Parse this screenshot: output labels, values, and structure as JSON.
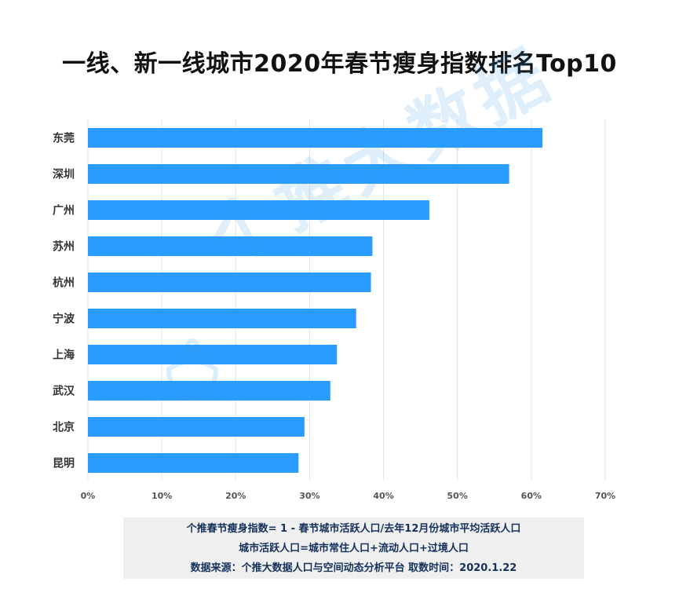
{
  "chart_data": {
    "type": "bar",
    "orientation": "horizontal",
    "title": "一线、新一线城市2020年春节瘦身指数排名Top10",
    "categories": [
      "东莞",
      "深圳",
      "广州",
      "苏州",
      "杭州",
      "宁波",
      "上海",
      "武汉",
      "北京",
      "昆明"
    ],
    "values": [
      61.5,
      57,
      46.2,
      38.5,
      38.3,
      36.3,
      33.7,
      32.8,
      29.3,
      28.5
    ],
    "xlim": [
      0,
      70
    ],
    "xticks": [
      "0%",
      "10%",
      "20%",
      "30%",
      "40%",
      "50%",
      "60%",
      "70%"
    ],
    "grid": true,
    "bar_color": "#2a9cff"
  },
  "watermark": {
    "text": "个推大数据",
    "color": "#3399e6"
  },
  "footnote": {
    "line1": "个推春节瘦身指数= 1 - 春节城市活跃人口/去年12月份城市平均活跃人口",
    "line2": "城市活跃人口=城市常住人口+流动人口+过境人口",
    "line3": "数据来源：个推大数据人口与空间动态分析平台 取数时间：2020.1.22"
  }
}
